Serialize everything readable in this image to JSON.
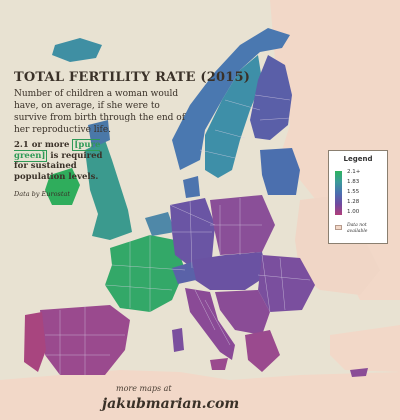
{
  "title": "TOTAL FERTILITY RATE (2015)",
  "subtitle": "Number of children a woman would have, on average, if she were to survive from birth through the end of her reproductive life.",
  "note": {
    "prefix": "2.1 or more ",
    "highlight": "[pure green]",
    "suffix": " is required for sustained population levels."
  },
  "source": "Data by Eurostat",
  "legend": {
    "title": "Legend",
    "ticks": [
      "2.1+",
      "1.83",
      "1.55",
      "1.28",
      "1.00"
    ],
    "colors": [
      "#2db35f",
      "#3b9a9a",
      "#4a6fb0",
      "#6f4aa0",
      "#b03f7a"
    ],
    "no_data_label": "Data not available",
    "no_data_color": "#f2d8c8"
  },
  "footer": {
    "more_maps": "more maps at",
    "site": "jakubmarian.com"
  },
  "colors": {
    "sea": "#e8e2d2",
    "outside": "#f2d8c8",
    "border": "#c9c1d6"
  }
}
